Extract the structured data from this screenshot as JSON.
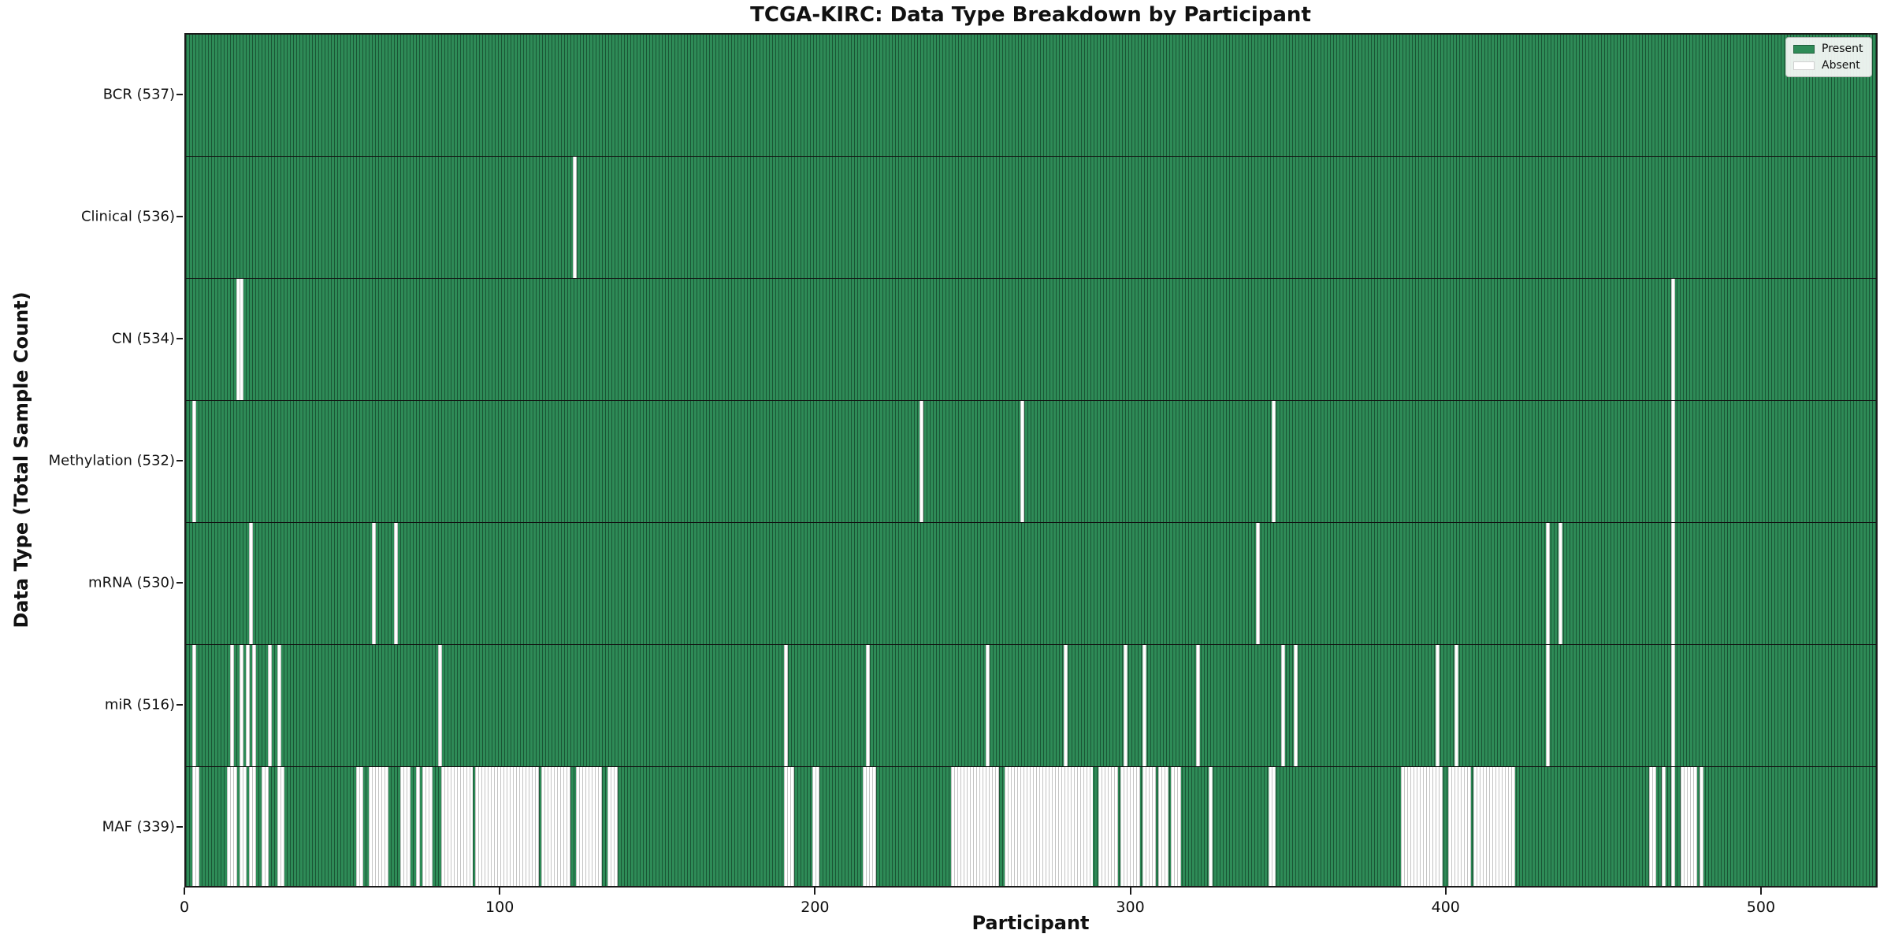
{
  "title": "TCGA-KIRC: Data Type Breakdown by Participant",
  "axes": {
    "x_label": "Participant",
    "y_label": "Data Type (Total Sample Count)"
  },
  "legend": {
    "items": [
      {
        "label": "Present",
        "color": "#2e8b57"
      },
      {
        "label": "Absent",
        "color": "#ffffff"
      }
    ]
  },
  "colors": {
    "present_fill": "#2e8b57",
    "present_edge": "#17492e",
    "absent_fill": "#ffffff",
    "absent_edge": "#c4c4c4",
    "row_divider": "#111111",
    "plot_border": "#1a1a1a",
    "legend_bg": "#f8faf8",
    "legend_border": "#b5b9b5",
    "background": "#ffffff",
    "text": "#111111"
  },
  "chart_data": {
    "type": "heatmap",
    "title": "TCGA-KIRC: Data Type Breakdown by Participant",
    "xlabel": "Participant",
    "ylabel": "Data Type (Total Sample Count)",
    "n_participants": 537,
    "x_range": [
      0,
      537
    ],
    "x_ticks": [
      0,
      100,
      200,
      300,
      400,
      500
    ],
    "grid": false,
    "legend_entries": [
      "Present",
      "Absent"
    ],
    "legend_position": "upper right",
    "rows": [
      {
        "label": "BCR (537)",
        "data_type": "BCR",
        "present_count": 537,
        "absent_count": 0,
        "absent_ranges": []
      },
      {
        "label": "Clinical (536)",
        "data_type": "Clinical",
        "present_count": 536,
        "absent_count": 1,
        "absent_ranges": [
          [
            123,
            123
          ]
        ]
      },
      {
        "label": "CN (534)",
        "data_type": "CN",
        "present_count": 534,
        "absent_count": 3,
        "absent_ranges": [
          [
            16,
            17
          ],
          [
            472,
            472
          ]
        ]
      },
      {
        "label": "Methylation (532)",
        "data_type": "Methylation",
        "present_count": 532,
        "absent_count": 5,
        "absent_ranges": [
          [
            2,
            2
          ],
          [
            233,
            233
          ],
          [
            265,
            265
          ],
          [
            345,
            345
          ],
          [
            472,
            472
          ]
        ]
      },
      {
        "label": "mRNA (530)",
        "data_type": "mRNA",
        "present_count": 530,
        "absent_count": 7,
        "absent_ranges": [
          [
            20,
            20
          ],
          [
            59,
            59
          ],
          [
            66,
            66
          ],
          [
            340,
            340
          ],
          [
            432,
            432
          ],
          [
            436,
            436
          ],
          [
            472,
            472
          ]
        ]
      },
      {
        "label": "miR (516)",
        "data_type": "miR",
        "present_count": 516,
        "absent_count": 21,
        "absent_ranges": [
          [
            2,
            2
          ],
          [
            14,
            14
          ],
          [
            17,
            17
          ],
          [
            19,
            19
          ],
          [
            21,
            21
          ],
          [
            26,
            26
          ],
          [
            29,
            29
          ],
          [
            80,
            80
          ],
          [
            190,
            190
          ],
          [
            216,
            216
          ],
          [
            254,
            254
          ],
          [
            279,
            279
          ],
          [
            298,
            298
          ],
          [
            304,
            304
          ],
          [
            321,
            321
          ],
          [
            348,
            348
          ],
          [
            352,
            352
          ],
          [
            397,
            397
          ],
          [
            403,
            403
          ],
          [
            432,
            432
          ],
          [
            472,
            472
          ]
        ]
      },
      {
        "label": "MAF (339)",
        "data_type": "MAF",
        "present_count": 339,
        "absent_count": 198,
        "absent_ranges": [
          [
            2,
            3
          ],
          [
            13,
            15
          ],
          [
            17,
            18
          ],
          [
            20,
            21
          ],
          [
            24,
            25
          ],
          [
            29,
            30
          ],
          [
            54,
            55
          ],
          [
            58,
            63
          ],
          [
            68,
            70
          ],
          [
            73,
            73
          ],
          [
            75,
            77
          ],
          [
            81,
            90
          ],
          [
            92,
            111
          ],
          [
            113,
            121
          ],
          [
            124,
            131
          ],
          [
            134,
            136
          ],
          [
            190,
            192
          ],
          [
            199,
            200
          ],
          [
            215,
            218
          ],
          [
            243,
            257
          ],
          [
            260,
            287
          ],
          [
            290,
            295
          ],
          [
            297,
            302
          ],
          [
            304,
            307
          ],
          [
            309,
            311
          ],
          [
            313,
            315
          ],
          [
            325,
            325
          ],
          [
            344,
            345
          ],
          [
            386,
            398
          ],
          [
            401,
            407
          ],
          [
            409,
            421
          ],
          [
            465,
            466
          ],
          [
            469,
            469
          ],
          [
            472,
            472
          ],
          [
            475,
            479
          ],
          [
            481,
            481
          ]
        ]
      }
    ]
  }
}
